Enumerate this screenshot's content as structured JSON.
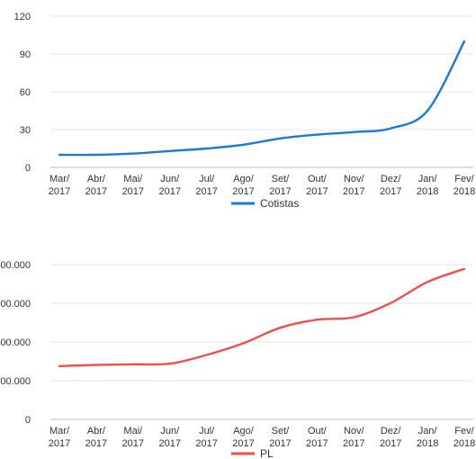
{
  "chart_data": [
    {
      "type": "line",
      "title": "",
      "xlabel": "",
      "ylabel": "",
      "ylim": [
        0,
        120
      ],
      "yticks": [
        "0",
        "30",
        "60",
        "90",
        "120"
      ],
      "categories_top": [
        "Mar/",
        "Abr/",
        "Mai/",
        "Jun/",
        "Jul/",
        "Ago/",
        "Set/",
        "Out/",
        "Nov/",
        "Dez/",
        "Jan/",
        "Fev/"
      ],
      "categories_bottom": [
        "2017",
        "2017",
        "2017",
        "2017",
        "2017",
        "2017",
        "2017",
        "2017",
        "2017",
        "2017",
        "2018",
        "2018"
      ],
      "grid": true,
      "legend_position": "bottom",
      "series": [
        {
          "name": "Cotistas",
          "color": "#1a7ad9",
          "values": [
            10,
            10,
            11,
            13,
            15,
            18,
            23,
            26,
            28,
            31,
            45,
            100
          ]
        }
      ]
    },
    {
      "type": "line",
      "title": "",
      "xlabel": "",
      "ylabel": "",
      "ylim": [
        0,
        250000
      ],
      "yticks": [
        "0",
        "00.000",
        "00.000",
        "00.000",
        "00.000"
      ],
      "categories_top": [
        "Mar/",
        "Abr/",
        "Mai/",
        "Jun/",
        "Jul/",
        "Ago/",
        "Set/",
        "Out/",
        "Nov/",
        "Dez/",
        "Jan/",
        "Fev/"
      ],
      "categories_bottom": [
        "2017",
        "2017",
        "2017",
        "2017",
        "2017",
        "2017",
        "2017",
        "2017",
        "2017",
        "2017",
        "2018",
        "2018"
      ],
      "grid": true,
      "legend_position": "bottom",
      "series": [
        {
          "name": "PL",
          "color": "#ef4f4a",
          "values": [
            86000,
            88000,
            89000,
            90000,
            104000,
            123000,
            148000,
            161000,
            165000,
            188000,
            222000,
            243000
          ]
        }
      ]
    }
  ]
}
